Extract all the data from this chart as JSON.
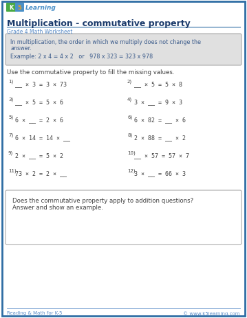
{
  "title": "Multiplication - commutative property",
  "subtitle": "Grade 4 Math Worksheet",
  "info_line1": "In multiplication, the order in which we multiply does not change the",
  "info_line2": "answer.",
  "info_line3": "Example: 2 x 4 = 4 x 2   or   978 x 323 = 323 x 978",
  "instruction": "Use the commutative property to fill the missing values.",
  "problems_left": [
    {
      "num": "1)",
      "text": "__ × 3 = 3 × 73"
    },
    {
      "num": "3)",
      "text": "__ × 5 = 5 × 6"
    },
    {
      "num": "5)",
      "text": "6 × __ = 2 × 6"
    },
    {
      "num": "7)",
      "text": "6 × 14 = 14 × __"
    },
    {
      "num": "9)",
      "text": "2 × __ = 5 × 2"
    },
    {
      "num": "11)",
      "text": "73 × 2 = 2 × __"
    }
  ],
  "problems_right": [
    {
      "num": "2)",
      "text": "__ × 5 = 5 × 8"
    },
    {
      "num": "4)",
      "text": "3 × __ = 9 × 3"
    },
    {
      "num": "6)",
      "text": "6 × 82 = __ × 6"
    },
    {
      "num": "8)",
      "text": "2 × 88 = __ × 2"
    },
    {
      "num": "10)",
      "text": "__ × 57 = 57 × 7"
    },
    {
      "num": "12)",
      "text": "3 × __ = 66 × 3"
    }
  ],
  "question_line1": "Does the commutative property apply to addition questions?",
  "question_line2": "Answer and show an example.",
  "footer_left": "Reading & Math for K-5",
  "footer_right": "© www.k5learning.com",
  "bg_color": "#ffffff",
  "border_color": "#2e6da4",
  "info_bg": "#e0e0e0",
  "title_color": "#1a3a6b",
  "subtitle_color": "#5b8dc8",
  "text_color": "#404040",
  "info_text_color": "#3a5a8a",
  "footer_color": "#5b8dc8",
  "logo_bg": "#4a90c8",
  "logo_5_color": "#e8a020"
}
